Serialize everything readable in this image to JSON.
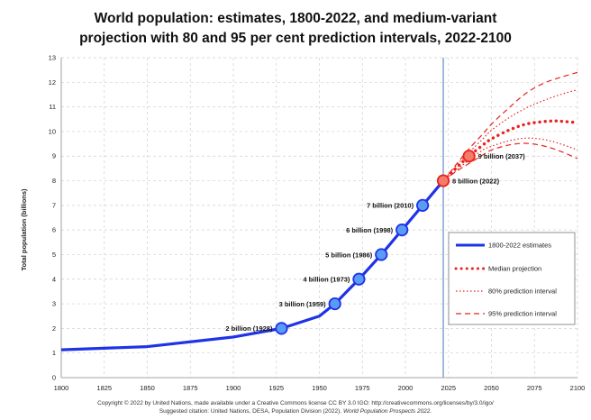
{
  "chart_data": {
    "type": "line",
    "title": [
      "World population: estimates, 1800-2022, and medium-variant",
      "projection with 80 and 95 per cent prediction intervals, 2022-2100"
    ],
    "ylabel": "Total population (billions)",
    "xlabel": "",
    "xlim": [
      1800,
      2100
    ],
    "ylim": [
      0,
      13
    ],
    "x_ticks": [
      "1800",
      "1825",
      "1850",
      "1875",
      "1900",
      "1925",
      "1950",
      "1975",
      "2000",
      "2025",
      "2050",
      "2075",
      "2100"
    ],
    "y_ticks": [
      "0",
      "1",
      "2",
      "3",
      "4",
      "5",
      "6",
      "7",
      "8",
      "9",
      "10",
      "11",
      "12",
      "13"
    ],
    "grid": true,
    "vertical_reference_line": 2022,
    "legend_position": "right",
    "colors": {
      "estimates": "#1f33e6",
      "milestone_fill": "#5a9cf5",
      "projection": "#e8231f",
      "reference_line": "#8aa6d6",
      "grid": "#d0d0d0"
    },
    "series": [
      {
        "name": "1800-2022 estimates",
        "style": "solid",
        "x": [
          1800,
          1850,
          1900,
          1928,
          1950,
          1959,
          1973,
          1986,
          1998,
          2010,
          2022
        ],
        "y": [
          1.13,
          1.26,
          1.65,
          2.0,
          2.5,
          3.0,
          4.0,
          5.0,
          6.0,
          7.0,
          8.0
        ]
      },
      {
        "name": "Median projection",
        "style": "dotted-heavy",
        "x": [
          2022,
          2030,
          2037,
          2045,
          2050,
          2060,
          2070,
          2080,
          2086,
          2090,
          2100
        ],
        "y": [
          8.0,
          8.55,
          9.0,
          9.45,
          9.7,
          10.05,
          10.3,
          10.4,
          10.43,
          10.42,
          10.36
        ]
      },
      {
        "name": "80% prediction interval",
        "style": "dotted",
        "upper": {
          "x": [
            2022,
            2030,
            2037,
            2045,
            2050,
            2060,
            2070,
            2080,
            2090,
            2100
          ],
          "y": [
            8.0,
            8.65,
            9.15,
            9.7,
            10.05,
            10.55,
            10.95,
            11.25,
            11.5,
            11.7
          ]
        },
        "lower": {
          "x": [
            2022,
            2030,
            2037,
            2045,
            2050,
            2060,
            2070,
            2080,
            2090,
            2100
          ],
          "y": [
            8.0,
            8.45,
            8.85,
            9.25,
            9.4,
            9.62,
            9.73,
            9.68,
            9.5,
            9.25
          ]
        }
      },
      {
        "name": "95% prediction interval",
        "style": "dashed",
        "upper": {
          "x": [
            2022,
            2030,
            2037,
            2045,
            2050,
            2060,
            2070,
            2080,
            2090,
            2100
          ],
          "y": [
            8.0,
            8.7,
            9.3,
            9.9,
            10.3,
            10.95,
            11.55,
            11.95,
            12.2,
            12.4
          ]
        },
        "lower": {
          "x": [
            2022,
            2030,
            2037,
            2045,
            2050,
            2060,
            2070,
            2080,
            2090,
            2100
          ],
          "y": [
            8.0,
            8.4,
            8.7,
            9.05,
            9.25,
            9.45,
            9.52,
            9.42,
            9.2,
            8.9
          ]
        }
      }
    ],
    "milestones": [
      {
        "year": 1928,
        "value": 2,
        "label": "2 billion (1928)",
        "side": "left",
        "kind": "estimate"
      },
      {
        "year": 1959,
        "value": 3,
        "label": "3 billion (1959)",
        "side": "left",
        "kind": "estimate"
      },
      {
        "year": 1973,
        "value": 4,
        "label": "4 billion (1973)",
        "side": "left",
        "kind": "estimate"
      },
      {
        "year": 1986,
        "value": 5,
        "label": "5 billion (1986)",
        "side": "left",
        "kind": "estimate"
      },
      {
        "year": 1998,
        "value": 6,
        "label": "6 billion (1998)",
        "side": "left",
        "kind": "estimate"
      },
      {
        "year": 2010,
        "value": 7,
        "label": "7 billion (2010)",
        "side": "left",
        "kind": "estimate"
      },
      {
        "year": 2022,
        "value": 8,
        "label": "8 billion (2022)",
        "side": "right",
        "kind": "projection"
      },
      {
        "year": 2037,
        "value": 9,
        "label": "9 billion (2037)",
        "side": "right",
        "kind": "projection"
      }
    ]
  },
  "footer": {
    "line1": "Copyright © 2022 by United Nations, made available under a Creative Commons license CC BY 3.0 IGO: http://creativecommons.org/licenses/by/3.0/igo/",
    "line2_prefix": "Suggested citation: United Nations, DESA, Population Division (2022).",
    "line2_italic": "World Population Prospects 2022."
  }
}
